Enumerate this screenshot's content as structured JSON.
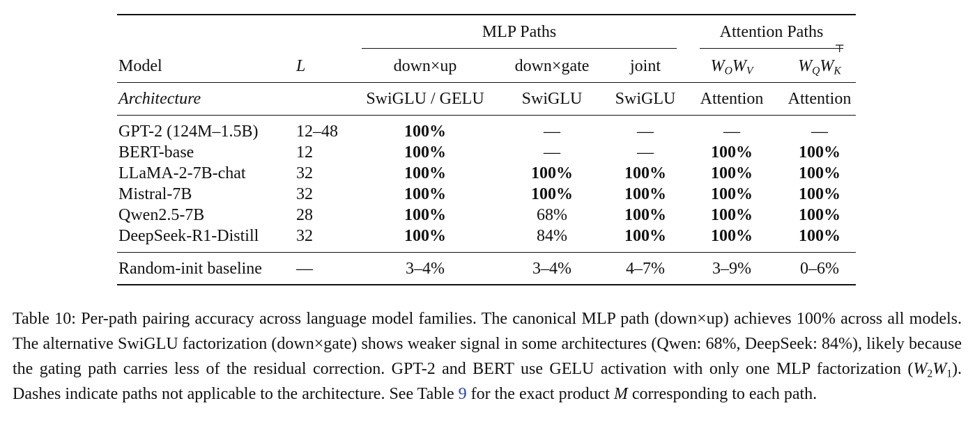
{
  "table": {
    "group_headers": {
      "mlp": "MLP Paths",
      "attn": "Attention Paths"
    },
    "col_headers": {
      "model": "Model",
      "L": "L",
      "down_up": "down×up",
      "down_gate": "down×gate",
      "joint": "joint",
      "wowv": {
        "base1": "W",
        "sub1": "O",
        "base2": "W",
        "sub2": "V"
      },
      "wqwk": {
        "base1": "W",
        "sub1": "Q",
        "base2": "W",
        "sub2": "K",
        "sup2": "⊤"
      }
    },
    "arch_row": {
      "label": "Architecture",
      "down_up": "SwiGLU / GELU",
      "down_gate": "SwiGLU",
      "joint": "SwiGLU",
      "wowv": "Attention",
      "wqwk": "Attention"
    },
    "rows": [
      {
        "model": "GPT-2 (124M–1.5B)",
        "L": "12–48",
        "down_up": "100%",
        "down_gate": "—",
        "joint": "—",
        "wowv": "—",
        "wqwk": "—"
      },
      {
        "model": "BERT-base",
        "L": "12",
        "down_up": "100%",
        "down_gate": "—",
        "joint": "—",
        "wowv": "100%",
        "wqwk": "100%"
      },
      {
        "model": "LLaMA-2-7B-chat",
        "L": "32",
        "down_up": "100%",
        "down_gate": "100%",
        "joint": "100%",
        "wowv": "100%",
        "wqwk": "100%"
      },
      {
        "model": "Mistral-7B",
        "L": "32",
        "down_up": "100%",
        "down_gate": "100%",
        "joint": "100%",
        "wowv": "100%",
        "wqwk": "100%"
      },
      {
        "model": "Qwen2.5-7B",
        "L": "28",
        "down_up": "100%",
        "down_gate": "68%",
        "joint": "100%",
        "wowv": "100%",
        "wqwk": "100%"
      },
      {
        "model": "DeepSeek-R1-Distill",
        "L": "32",
        "down_up": "100%",
        "down_gate": "84%",
        "joint": "100%",
        "wowv": "100%",
        "wqwk": "100%"
      }
    ],
    "baseline": {
      "model": "Random-init baseline",
      "L": "—",
      "down_up": "3–4%",
      "down_gate": "3–4%",
      "joint": "4–7%",
      "wowv": "3–9%",
      "wqwk": "0–6%"
    }
  },
  "caption": {
    "s1": "Table 10: Per-path pairing accuracy across language model families. The canonical MLP path (down×up) achieves 100% across all models. The alternative SwiGLU factorization (down×gate) shows weaker signal in some architectures (Qwen: 68%, DeepSeek: 84%), likely because the gating path carries less of the residual correction. GPT-2 and BERT use GELU activation with only one MLP factorization (",
    "w2": "W",
    "w2_sub": "2",
    "w1": "W",
    "w1_sub": "1",
    "s2": "). Dashes indicate paths not applicable to the architecture. See Table ",
    "ref": "9",
    "s3": " for the exact product ",
    "m": "M",
    "s4": " corresponding to each path."
  }
}
